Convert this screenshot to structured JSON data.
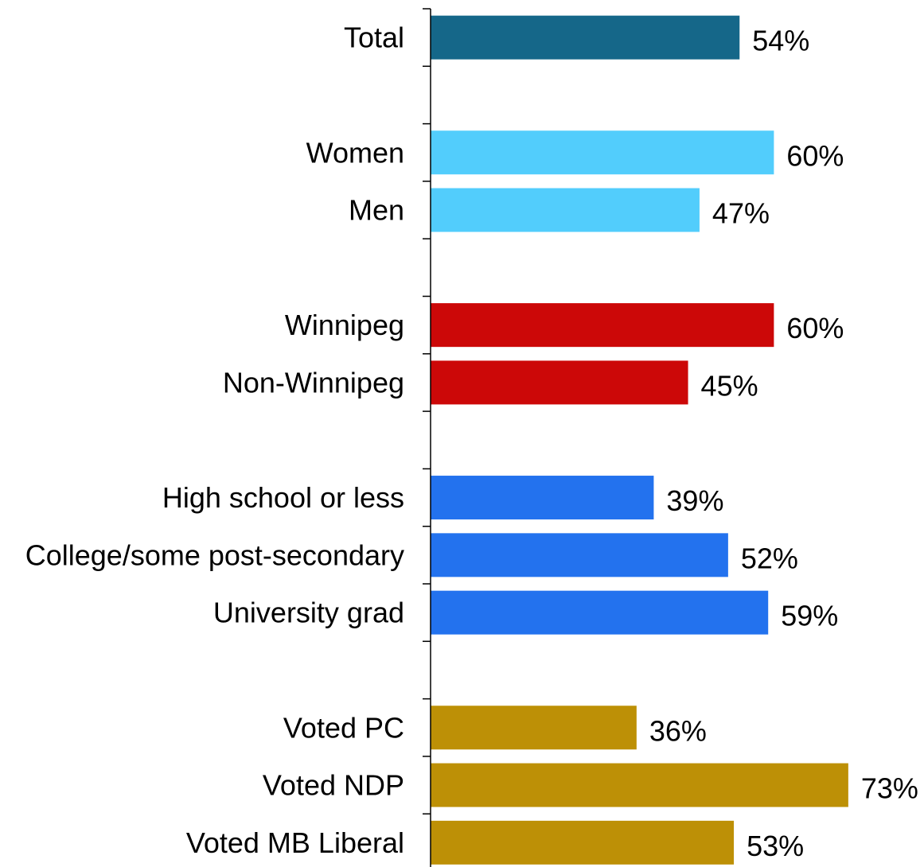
{
  "chart_data": {
    "type": "bar",
    "orientation": "horizontal",
    "value_suffix": "%",
    "xlim": [
      0,
      80
    ],
    "grid": false,
    "legend": "none",
    "rows": [
      {
        "category": "Total",
        "value": 54,
        "label": "54%",
        "color": "#156789"
      },
      {
        "category": "",
        "value": null,
        "label": "",
        "color": ""
      },
      {
        "category": "Women",
        "value": 60,
        "label": "60%",
        "color": "#52CDFC"
      },
      {
        "category": "Men",
        "value": 47,
        "label": "47%",
        "color": "#52CDFC"
      },
      {
        "category": "",
        "value": null,
        "label": "",
        "color": ""
      },
      {
        "category": "Winnipeg",
        "value": 60,
        "label": "60%",
        "color": "#CC0808"
      },
      {
        "category": "Non-Winnipeg",
        "value": 45,
        "label": "45%",
        "color": "#CC0808"
      },
      {
        "category": "",
        "value": null,
        "label": "",
        "color": ""
      },
      {
        "category": "High school or less",
        "value": 39,
        "label": "39%",
        "color": "#2372EE"
      },
      {
        "category": "College/some post-secondary",
        "value": 52,
        "label": "52%",
        "color": "#2372EE"
      },
      {
        "category": "University grad",
        "value": 59,
        "label": "59%",
        "color": "#2372EE"
      },
      {
        "category": "",
        "value": null,
        "label": "",
        "color": ""
      },
      {
        "category": "Voted PC",
        "value": 36,
        "label": "36%",
        "color": "#BD9006"
      },
      {
        "category": "Voted NDP",
        "value": 73,
        "label": "73%",
        "color": "#BD9006"
      },
      {
        "category": "Voted MB Liberal",
        "value": 53,
        "label": "53%",
        "color": "#BD9006"
      }
    ]
  }
}
